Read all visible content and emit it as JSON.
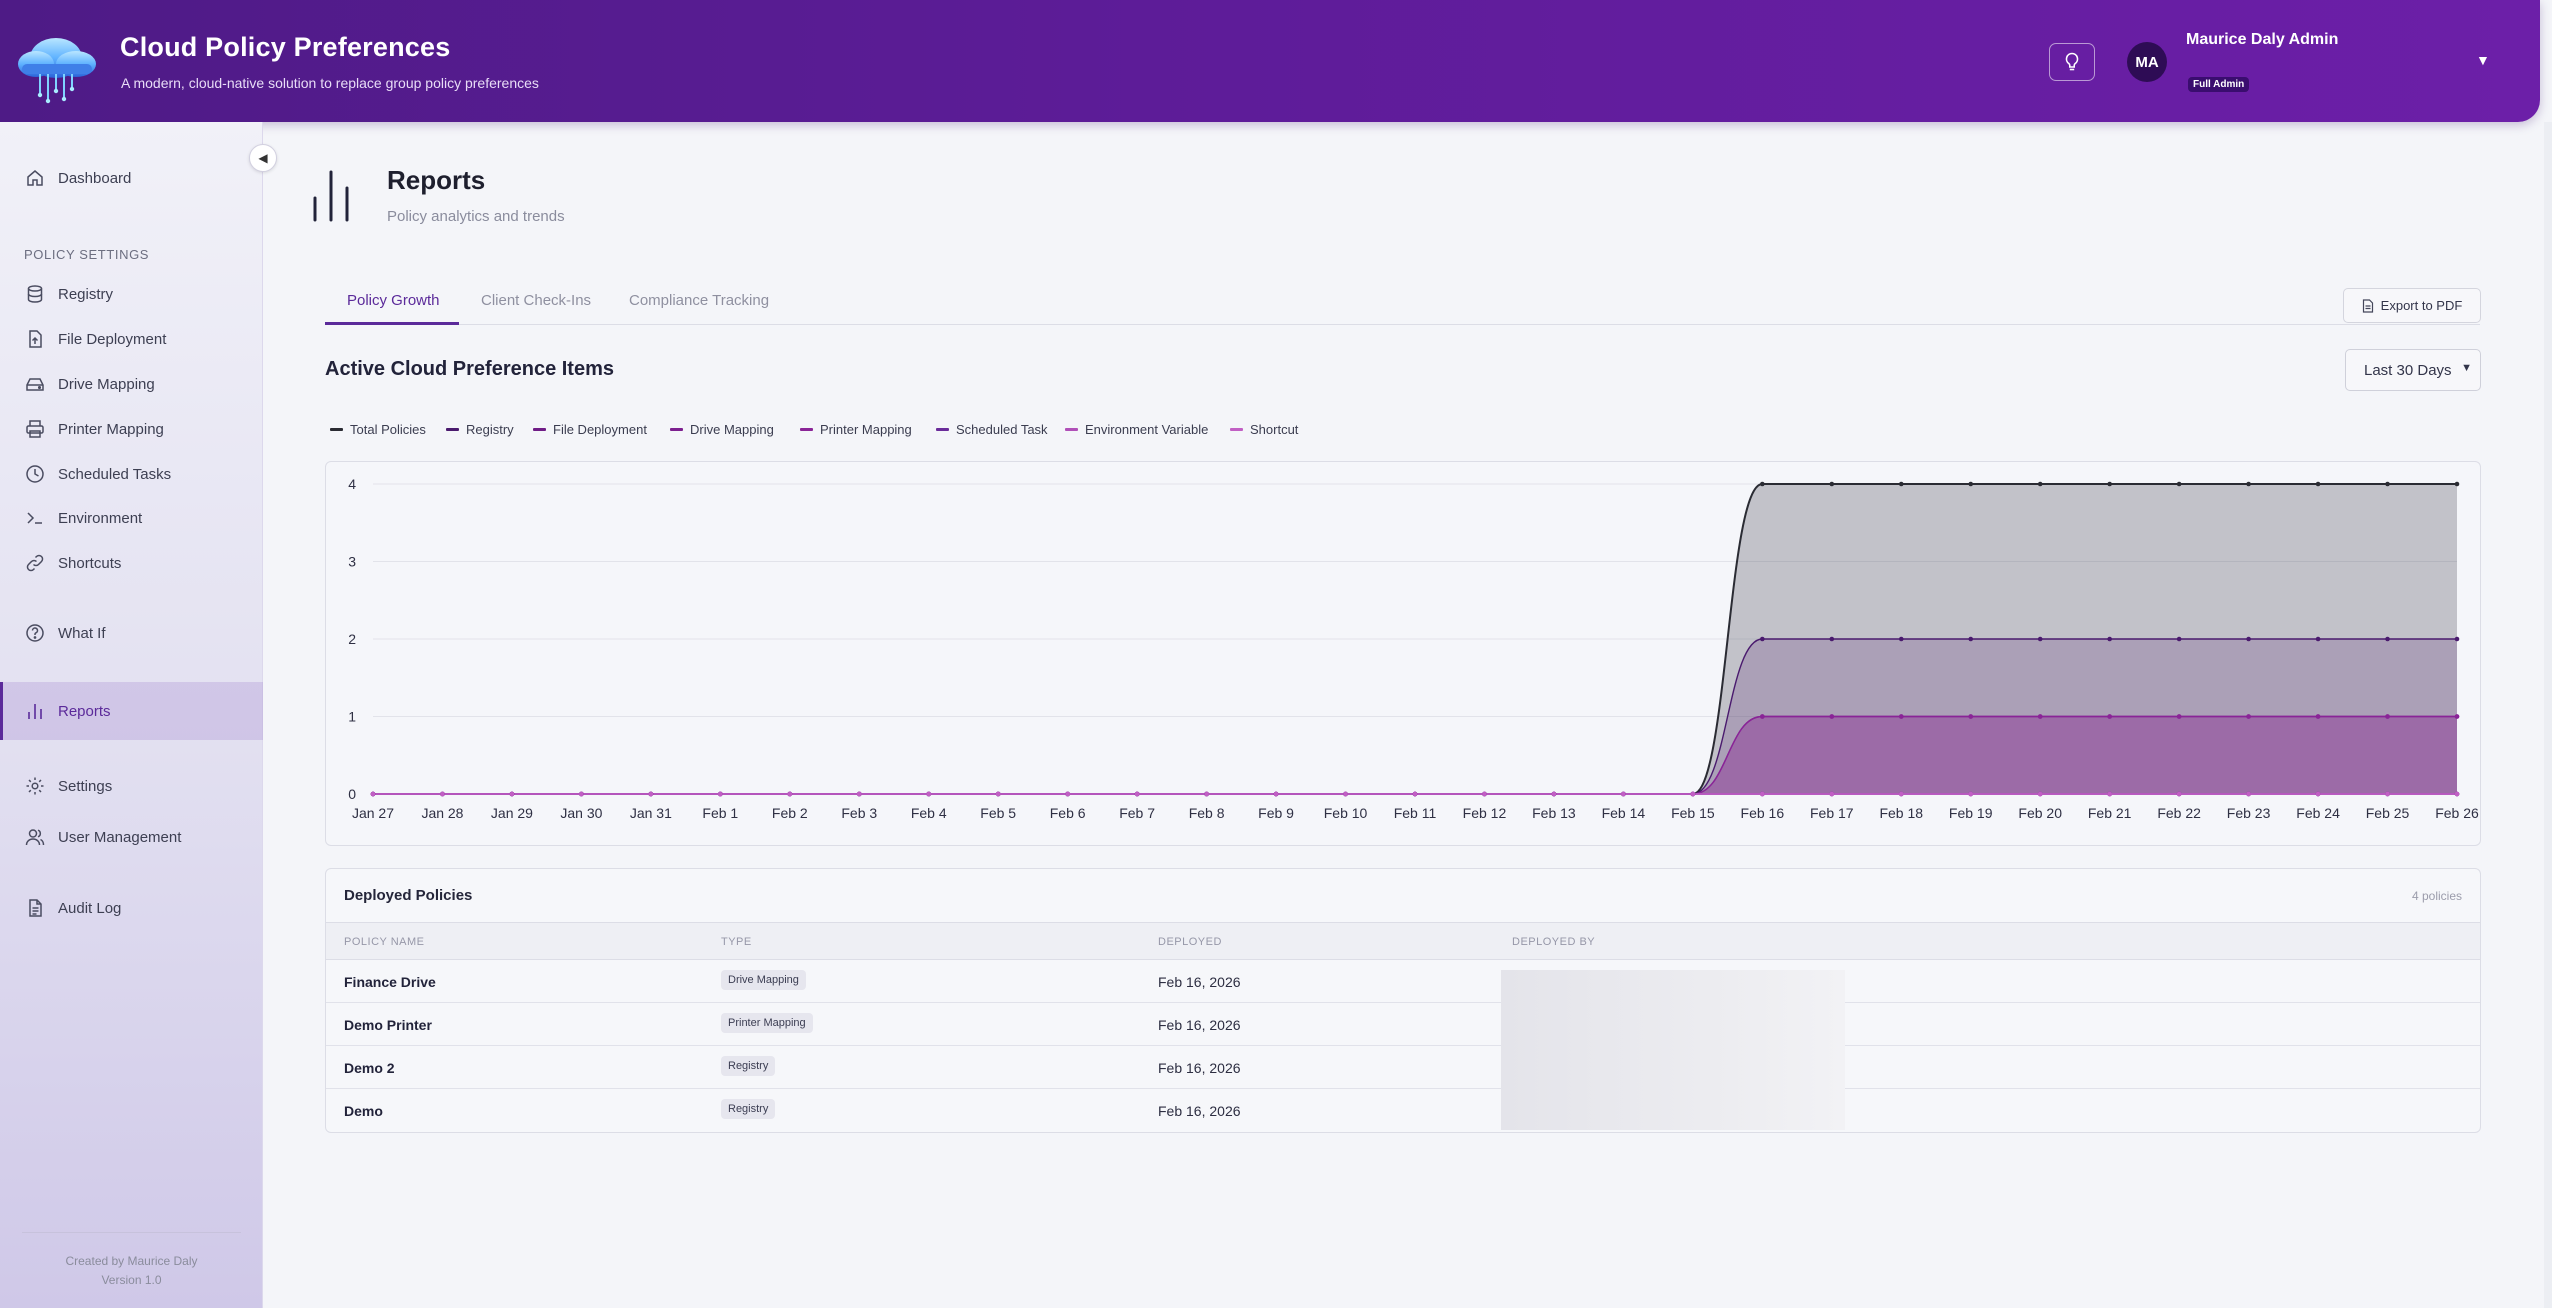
{
  "header": {
    "title": "Cloud Policy Preferences",
    "subtitle": "A modern, cloud-native solution to replace group policy preferences",
    "user_name": "Maurice Daly Admin",
    "user_initials": "MA",
    "user_role": "Full Admin",
    "icons": {
      "bulb": "lightbulb-icon",
      "caret": "chevron-down-icon"
    }
  },
  "sidebar": {
    "dashboard": "Dashboard",
    "section_label": "POLICY SETTINGS",
    "items": [
      {
        "label": "Registry",
        "icon": "database-icon"
      },
      {
        "label": "File Deployment",
        "icon": "file-upload-icon"
      },
      {
        "label": "Drive Mapping",
        "icon": "drive-icon"
      },
      {
        "label": "Printer Mapping",
        "icon": "printer-icon"
      },
      {
        "label": "Scheduled Tasks",
        "icon": "clock-icon"
      },
      {
        "label": "Environment",
        "icon": "terminal-icon"
      },
      {
        "label": "Shortcuts",
        "icon": "link-icon"
      }
    ],
    "what_if": "What If",
    "reports": "Reports",
    "settings": "Settings",
    "user_management": "User Management",
    "audit_log": "Audit Log",
    "footer_line1": "Created by Maurice Daly",
    "footer_line2": "Version 1.0"
  },
  "page": {
    "title": "Reports",
    "subtitle": "Policy analytics and trends"
  },
  "tabs": [
    {
      "label": "Policy Growth",
      "active": true
    },
    {
      "label": "Client Check-Ins",
      "active": false
    },
    {
      "label": "Compliance Tracking",
      "active": false
    }
  ],
  "export_label": "Export to PDF",
  "chart_section_title": "Active Cloud Preference Items",
  "range_selected": "Last 30 Days",
  "colors": {
    "accent": "#5b2a9a",
    "total": "#2a2b33",
    "registry": "#4a1a6e",
    "file_deployment": "#6f1c86",
    "drive_mapping": "#7c1f8f",
    "printer_mapping": "#8a2497",
    "scheduled_task": "#6a2b9a",
    "environment_variable": "#b04fb8",
    "shortcut": "#c15fc4"
  },
  "chart_data": {
    "type": "area",
    "title": "Active Cloud Preference Items",
    "xlabel": "",
    "ylabel": "",
    "ylim": [
      0,
      4
    ],
    "yticks": [
      0,
      1,
      2,
      3,
      4
    ],
    "grid": true,
    "legend": "top-left",
    "x": [
      "Jan 27",
      "Jan 28",
      "Jan 29",
      "Jan 30",
      "Jan 31",
      "Feb 1",
      "Feb 2",
      "Feb 3",
      "Feb 4",
      "Feb 5",
      "Feb 6",
      "Feb 7",
      "Feb 8",
      "Feb 9",
      "Feb 10",
      "Feb 11",
      "Feb 12",
      "Feb 13",
      "Feb 14",
      "Feb 15",
      "Feb 16",
      "Feb 17",
      "Feb 18",
      "Feb 19",
      "Feb 20",
      "Feb 21",
      "Feb 22",
      "Feb 23",
      "Feb 24",
      "Feb 25",
      "Feb 26"
    ],
    "series": [
      {
        "name": "Total Policies",
        "color": "#2a2b33",
        "values": [
          0,
          0,
          0,
          0,
          0,
          0,
          0,
          0,
          0,
          0,
          0,
          0,
          0,
          0,
          0,
          0,
          0,
          0,
          0,
          0,
          4,
          4,
          4,
          4,
          4,
          4,
          4,
          4,
          4,
          4,
          4
        ]
      },
      {
        "name": "Registry",
        "color": "#4a1a6e",
        "values": [
          0,
          0,
          0,
          0,
          0,
          0,
          0,
          0,
          0,
          0,
          0,
          0,
          0,
          0,
          0,
          0,
          0,
          0,
          0,
          0,
          2,
          2,
          2,
          2,
          2,
          2,
          2,
          2,
          2,
          2,
          2
        ]
      },
      {
        "name": "File Deployment",
        "color": "#6f1c86",
        "values": [
          0,
          0,
          0,
          0,
          0,
          0,
          0,
          0,
          0,
          0,
          0,
          0,
          0,
          0,
          0,
          0,
          0,
          0,
          0,
          0,
          0,
          0,
          0,
          0,
          0,
          0,
          0,
          0,
          0,
          0,
          0
        ]
      },
      {
        "name": "Drive Mapping",
        "color": "#7c1f8f",
        "values": [
          0,
          0,
          0,
          0,
          0,
          0,
          0,
          0,
          0,
          0,
          0,
          0,
          0,
          0,
          0,
          0,
          0,
          0,
          0,
          0,
          1,
          1,
          1,
          1,
          1,
          1,
          1,
          1,
          1,
          1,
          1
        ]
      },
      {
        "name": "Printer Mapping",
        "color": "#8a2497",
        "values": [
          0,
          0,
          0,
          0,
          0,
          0,
          0,
          0,
          0,
          0,
          0,
          0,
          0,
          0,
          0,
          0,
          0,
          0,
          0,
          0,
          1,
          1,
          1,
          1,
          1,
          1,
          1,
          1,
          1,
          1,
          1
        ]
      },
      {
        "name": "Scheduled Task",
        "color": "#6a2b9a",
        "values": [
          0,
          0,
          0,
          0,
          0,
          0,
          0,
          0,
          0,
          0,
          0,
          0,
          0,
          0,
          0,
          0,
          0,
          0,
          0,
          0,
          0,
          0,
          0,
          0,
          0,
          0,
          0,
          0,
          0,
          0,
          0
        ]
      },
      {
        "name": "Environment Variable",
        "color": "#b04fb8",
        "values": [
          0,
          0,
          0,
          0,
          0,
          0,
          0,
          0,
          0,
          0,
          0,
          0,
          0,
          0,
          0,
          0,
          0,
          0,
          0,
          0,
          0,
          0,
          0,
          0,
          0,
          0,
          0,
          0,
          0,
          0,
          0
        ]
      },
      {
        "name": "Shortcut",
        "color": "#c15fc4",
        "values": [
          0,
          0,
          0,
          0,
          0,
          0,
          0,
          0,
          0,
          0,
          0,
          0,
          0,
          0,
          0,
          0,
          0,
          0,
          0,
          0,
          0,
          0,
          0,
          0,
          0,
          0,
          0,
          0,
          0,
          0,
          0
        ]
      }
    ]
  },
  "table": {
    "title": "Deployed Policies",
    "count": "4 policies",
    "columns": [
      "POLICY NAME",
      "TYPE",
      "DEPLOYED",
      "DEPLOYED BY"
    ],
    "rows": [
      {
        "name": "Finance Drive",
        "type": "Drive Mapping",
        "deployed": "Feb 16, 2026"
      },
      {
        "name": "Demo Printer",
        "type": "Printer Mapping",
        "deployed": "Feb 16, 2026"
      },
      {
        "name": "Demo 2",
        "type": "Registry",
        "deployed": "Feb 16, 2026"
      },
      {
        "name": "Demo",
        "type": "Registry",
        "deployed": "Feb 16, 2026"
      }
    ]
  }
}
